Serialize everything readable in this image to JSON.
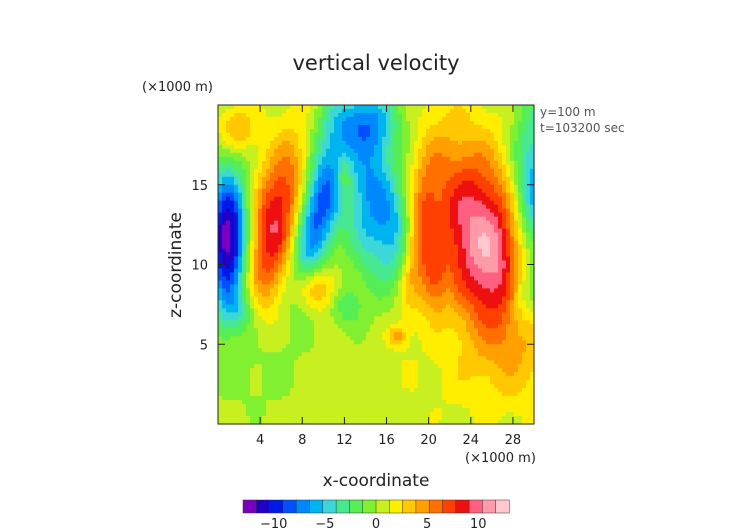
{
  "chart_data": {
    "type": "heatmap",
    "title": "vertical velocity",
    "xlabel": "x-coordinate",
    "ylabel": "z-coordinate",
    "x_unit": "(×1000 m)",
    "y_unit": "(×1000 m)",
    "annotations": [
      "y=100 m",
      "t=103200 sec"
    ],
    "xlim": [
      0,
      30
    ],
    "ylim": [
      0,
      20
    ],
    "x_ticks": [
      4,
      8,
      12,
      16,
      20,
      24,
      28
    ],
    "y_ticks": [
      5,
      10,
      15
    ],
    "colorbar": {
      "min": -13,
      "max": 13,
      "ticks": [
        -10,
        -5,
        0,
        5,
        10
      ],
      "colors": [
        "#7a00c0",
        "#2000c8",
        "#0018e8",
        "#0050ff",
        "#0088ff",
        "#00b4f0",
        "#3cd8d8",
        "#48e890",
        "#55ee55",
        "#80f030",
        "#c8f020",
        "#ffee00",
        "#ffc800",
        "#ffa000",
        "#ff7000",
        "#ff4000",
        "#ee1010",
        "#ff6080",
        "#ff9aa8",
        "#ffc8cc"
      ]
    },
    "fields": [
      {
        "name": "updraft-right",
        "x": 25.5,
        "z": 11,
        "sx": 3.3,
        "sz": 4.5,
        "amp": 11,
        "tilt": -0.35
      },
      {
        "name": "updraft-left",
        "x": 5.5,
        "z": 12.5,
        "sx": 1.9,
        "sz": 3.6,
        "amp": 9,
        "tilt": 0.3
      },
      {
        "name": "updraft-left-lower",
        "x": 9.5,
        "z": 8.5,
        "sx": 1.5,
        "sz": 1.0,
        "amp": 5,
        "tilt": 0
      },
      {
        "name": "updraft-tongue-a",
        "x": 19,
        "z": 11.5,
        "sx": 1.0,
        "sz": 3.2,
        "amp": 5,
        "tilt": 0.2
      },
      {
        "name": "updraft-tongue-b",
        "x": 20.5,
        "z": 9.0,
        "sx": 0.8,
        "sz": 1.6,
        "amp": 4,
        "tilt": 0
      },
      {
        "name": "updraft-top-left",
        "x": 1.8,
        "z": 18.5,
        "sx": 1.2,
        "sz": 1.0,
        "amp": 4,
        "tilt": 0
      },
      {
        "name": "updraft-small-mid",
        "x": 12.0,
        "z": 15.5,
        "sx": 0.5,
        "sz": 0.9,
        "amp": 3,
        "tilt": 0
      },
      {
        "name": "updraft-blob-low",
        "x": 17.0,
        "z": 5.5,
        "sx": 0.6,
        "sz": 0.4,
        "amp": 4,
        "tilt": 0
      },
      {
        "name": "downdraft-left",
        "x": 1.0,
        "z": 11.5,
        "sx": 1.4,
        "sz": 3.0,
        "amp": -14,
        "tilt": 0
      },
      {
        "name": "downdraft-mid",
        "x": 9.5,
        "z": 13.5,
        "sx": 1.5,
        "sz": 3.6,
        "amp": -10,
        "tilt": 0.3
      },
      {
        "name": "downdraft-mid-right",
        "x": 14.5,
        "z": 14.5,
        "sx": 1.6,
        "sz": 3.5,
        "amp": -7,
        "tilt": 0
      },
      {
        "name": "downdraft-center",
        "x": 17.0,
        "z": 12.0,
        "sx": 1.3,
        "sz": 2.5,
        "amp": -5,
        "tilt": 0
      },
      {
        "name": "downdraft-right-edge",
        "x": 30.0,
        "z": 14.0,
        "sx": 1.5,
        "sz": 4.0,
        "amp": -8,
        "tilt": 0
      },
      {
        "name": "downdraft-right-low",
        "x": 29.0,
        "z": 8.0,
        "sx": 1.3,
        "sz": 1.5,
        "amp": -4,
        "tilt": 0
      },
      {
        "name": "downdraft-top-center",
        "x": 14.0,
        "z": 19.0,
        "sx": 2.5,
        "sz": 1.4,
        "amp": -5,
        "tilt": 0
      },
      {
        "name": "downdraft-low-left",
        "x": 2.0,
        "z": 7.0,
        "sx": 1.3,
        "sz": 1.0,
        "amp": -3,
        "tilt": 0
      },
      {
        "name": "downdraft-dip",
        "x": 12.0,
        "z": 7.5,
        "sx": 1.2,
        "sz": 1.0,
        "amp": -3,
        "tilt": 0
      },
      {
        "name": "weak-low-left",
        "x": 3.0,
        "z": 3.5,
        "sx": 3.0,
        "sz": 2.0,
        "amp": -1.2,
        "tilt": 0
      },
      {
        "name": "weak-low-right",
        "x": 24.0,
        "z": 3.0,
        "sx": 4.0,
        "sz": 2.0,
        "amp": 1.0,
        "tilt": 0
      }
    ]
  }
}
